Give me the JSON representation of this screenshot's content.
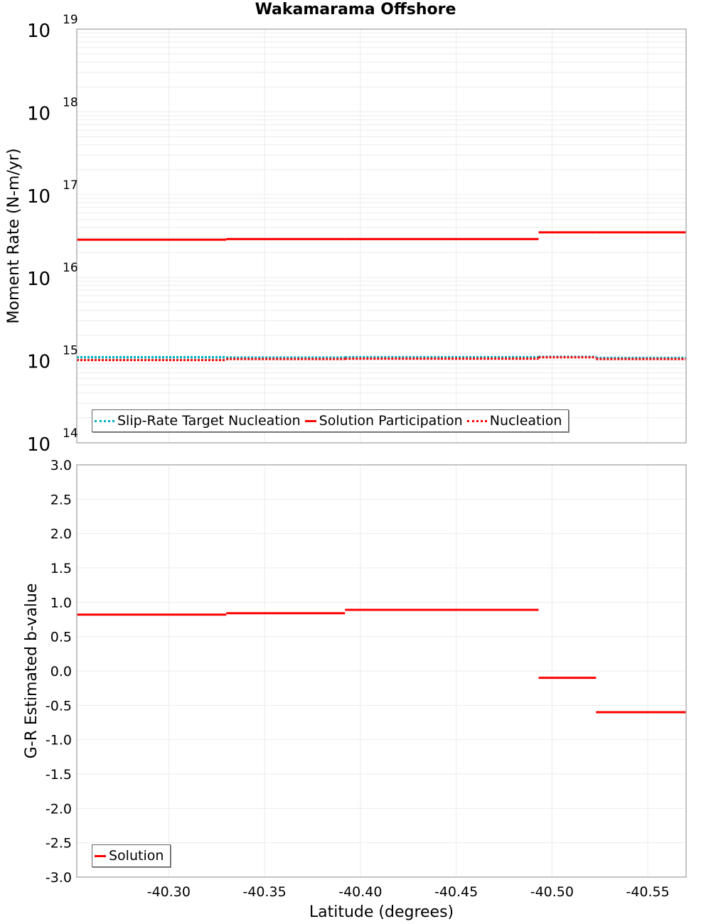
{
  "title": "Wakamarama Offshore",
  "chart_data": [
    {
      "type": "line",
      "subtype": "step",
      "title": "Wakamarama Offshore",
      "xlabel": "Latitude (degrees)",
      "ylabel": "Moment Rate (N-m/yr)",
      "yscale": "log",
      "ylim": [
        100000000000000.0,
        1e+19
      ],
      "xlim": [
        -40.252,
        -40.57
      ],
      "x_inverted": true,
      "grid": true,
      "ytick_labels": [
        {
          "base": "10",
          "exp": "14"
        },
        {
          "base": "10",
          "exp": "15"
        },
        {
          "base": "10",
          "exp": "16"
        },
        {
          "base": "10",
          "exp": "17"
        },
        {
          "base": "10",
          "exp": "18"
        },
        {
          "base": "10",
          "exp": "19"
        }
      ],
      "legend_position": "bottom-left",
      "x_breaks": [
        -40.252,
        -40.33,
        -40.392,
        -40.442,
        -40.493,
        -40.523,
        -40.57
      ],
      "series": [
        {
          "name": "Slip-Rate Target Nucleation",
          "color": "#00b0c0",
          "style": "dotted",
          "values": [
            1050000000000000.0,
            1040000000000000.0,
            1050000000000000.0,
            1050000000000000.0,
            1060000000000000.0,
            1030000000000000.0
          ]
        },
        {
          "name": "Solution Participation",
          "color": "#ff0000",
          "style": "solid",
          "values": [
            2.85e+16,
            2.9e+16,
            2.9e+16,
            2.9e+16,
            3.5e+16,
            3.5e+16
          ]
        },
        {
          "name": "Nucleation",
          "color": "#ff0000",
          "style": "dotted",
          "values": [
            1000000000000000.0,
            1030000000000000.0,
            1040000000000000.0,
            1040000000000000.0,
            1080000000000000.0,
            1030000000000000.0
          ]
        }
      ]
    },
    {
      "type": "line",
      "subtype": "step",
      "xlabel": "Latitude (degrees)",
      "ylabel": "G-R Estimated b-value",
      "ylim": [
        -3.0,
        3.0
      ],
      "yticks": [
        3.0,
        2.5,
        2.0,
        1.5,
        1.0,
        0.5,
        0.0,
        -0.5,
        -1.0,
        -1.5,
        -2.0,
        -2.5,
        -3.0
      ],
      "ytick_labels": [
        "3.0",
        "2.5",
        "2.0",
        "1.5",
        "1.0",
        "0.5",
        "0.0",
        "-0.5",
        "-1.0",
        "-1.5",
        "-2.0",
        "-2.5",
        "-3.0"
      ],
      "xticks": [
        -40.3,
        -40.35,
        -40.4,
        -40.45,
        -40.5,
        -40.55
      ],
      "xtick_labels": [
        "-40.30",
        "-40.35",
        "-40.40",
        "-40.45",
        "-40.50",
        "-40.55"
      ],
      "xlim": [
        -40.252,
        -40.57
      ],
      "x_inverted": true,
      "grid": true,
      "legend_position": "bottom-left",
      "x_breaks": [
        -40.252,
        -40.33,
        -40.392,
        -40.442,
        -40.493,
        -40.523,
        -40.57
      ],
      "series": [
        {
          "name": "Solution",
          "color": "#ff0000",
          "style": "solid",
          "values": [
            0.82,
            0.84,
            0.89,
            0.89,
            -0.1,
            -0.6
          ]
        }
      ]
    }
  ]
}
